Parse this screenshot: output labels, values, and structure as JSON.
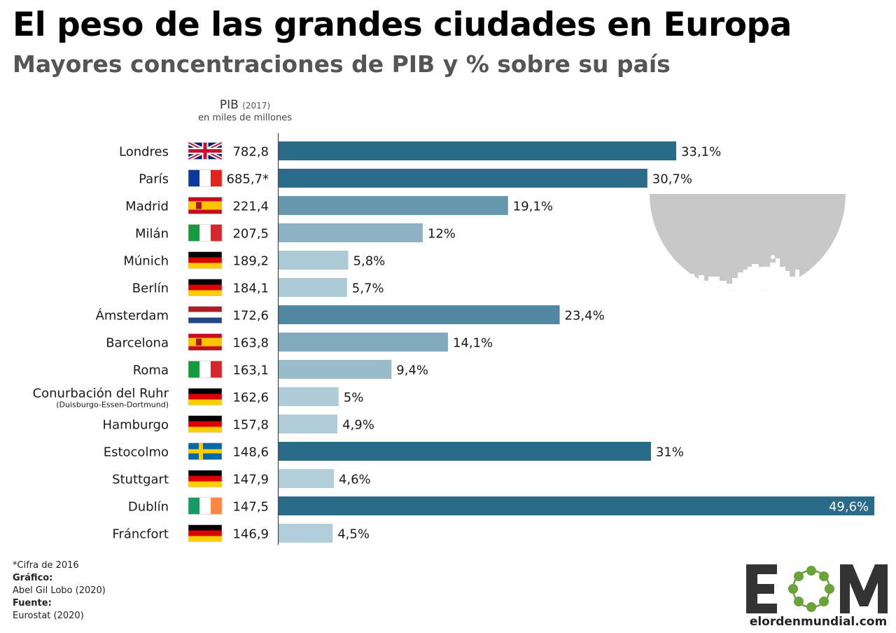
{
  "title": "El peso de las grandes ciudades en Europa",
  "subtitle": "Mayores concentraciones de PIB y % sobre su país",
  "pib_header": {
    "label": "PIB",
    "year": "(2017)",
    "unit": "en miles de millones"
  },
  "notes": {
    "footnote": "*Cifra de 2016",
    "grafico_label": "Gráfico:",
    "grafico": "Abel Gil Lobo (2020)",
    "fuente_label": "Fuente:",
    "fuente": "Eurostat (2020)"
  },
  "logo": {
    "text": "elordenmundial.com",
    "accent": "#6aa33a",
    "dark": "#333333"
  },
  "colors": {
    "dark_bar": "#2a6b8a",
    "light_bar": "#b5d0db",
    "skyline_gray": "#c8c8c8"
  },
  "chart_data": {
    "type": "bar",
    "orientation": "horizontal",
    "categories": [
      "Londres",
      "París",
      "Madrid",
      "Milán",
      "Múnich",
      "Berlín",
      "Ámsterdam",
      "Barcelona",
      "Roma",
      "Conurbación del Ruhr",
      "Hamburgo",
      "Estocolmo",
      "Stuttgart",
      "Dublín",
      "Fráncfort"
    ],
    "category_sublabels": [
      "",
      "",
      "",
      "",
      "",
      "",
      "",
      "",
      "",
      "(Duisburgo-Essen-Dortmund)",
      "",
      "",
      "",
      "",
      ""
    ],
    "flags": [
      "uk-flag",
      "france-flag",
      "spain-flag",
      "italy-flag",
      "germany-flag",
      "germany-flag",
      "netherlands-flag",
      "spain-flag",
      "italy-flag",
      "germany-flag",
      "germany-flag",
      "sweden-flag",
      "germany-flag",
      "ireland-flag",
      "germany-flag"
    ],
    "pib_labels": [
      "782,8",
      "685,7*",
      "221,4",
      "207,5",
      "189,2",
      "184,1",
      "172,6",
      "163,8",
      "163,1",
      "162,6",
      "157,8",
      "148,6",
      "147,9",
      "147,5",
      "146,9"
    ],
    "values": [
      33.1,
      30.7,
      19.1,
      12,
      5.8,
      5.7,
      23.4,
      14.1,
      9.4,
      5,
      4.9,
      31,
      4.6,
      49.6,
      4.5
    ],
    "value_labels": [
      "33,1%",
      "30,7%",
      "19,1%",
      "12%",
      "5,8%",
      "5,7%",
      "23,4%",
      "14,1%",
      "9,4%",
      "5%",
      "4,9%",
      "31%",
      "4,6%",
      "49,6%",
      "4,5%"
    ],
    "xlim": [
      0,
      50
    ]
  }
}
